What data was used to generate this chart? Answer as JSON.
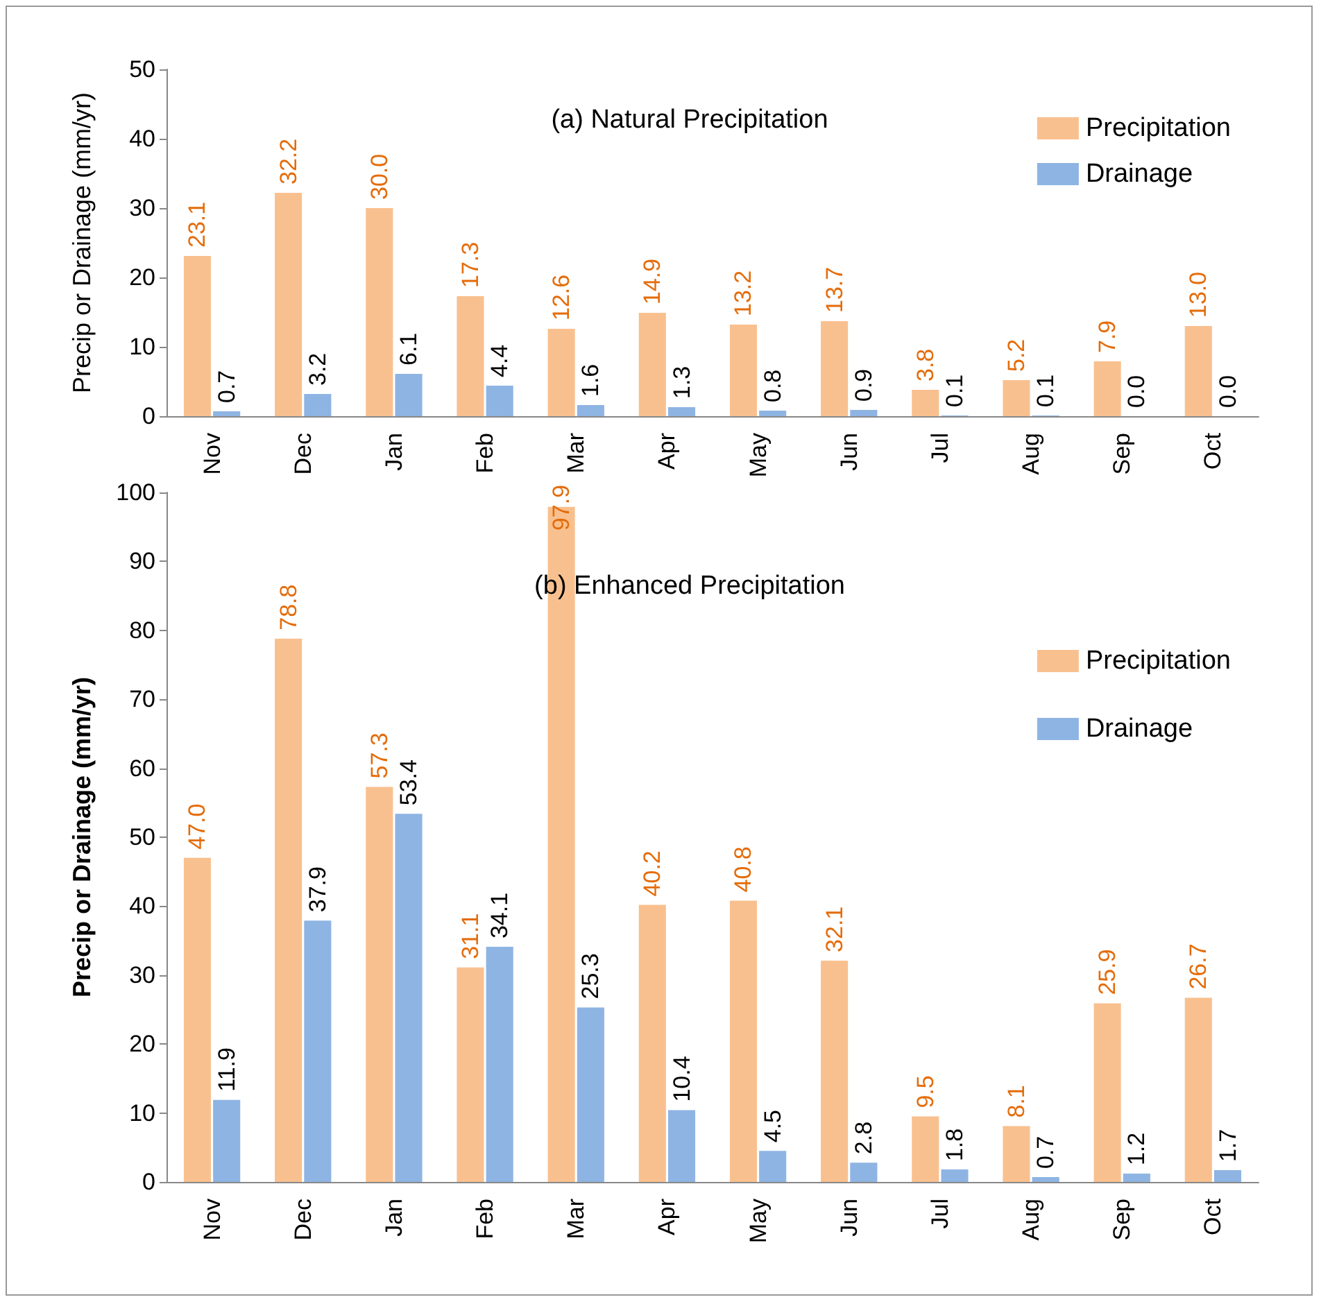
{
  "chart_data": [
    {
      "type": "bar",
      "title": "(a) Natural Precipitation",
      "ylabel": "Precip or Drainage (mm/yr)",
      "categories": [
        "Nov",
        "Dec",
        "Jan",
        "Feb",
        "Mar",
        "Apr",
        "May",
        "Jun",
        "Jul",
        "Aug",
        "Sep",
        "Oct"
      ],
      "series": [
        {
          "name": "Precipitation",
          "color": "#f9c08f",
          "values": [
            23.1,
            32.2,
            30,
            17.3,
            12.6,
            14.9,
            13.2,
            13.7,
            3.8,
            5.2,
            7.9,
            13
          ],
          "value_labels": [
            "23.1",
            "32.2",
            "30.0",
            "17.3",
            "12.6",
            "14.9",
            "13.2",
            "13.7",
            "3.8",
            "5.2",
            "7.9",
            "13.0"
          ]
        },
        {
          "name": "Drainage",
          "color": "#8eb4e3",
          "values": [
            0.7,
            3.2,
            6.1,
            4.4,
            1.6,
            1.3,
            0.8,
            0.9,
            0.1,
            0.1,
            0,
            0
          ],
          "value_labels": [
            "0.7",
            "3.2",
            "6.1",
            "4.4",
            "1.6",
            "1.3",
            "0.8",
            "0.9",
            "0.1",
            "0.1",
            "0.0",
            "0.0"
          ]
        }
      ],
      "ylim": [
        0,
        50
      ],
      "yticks": [
        0,
        10,
        20,
        30,
        40,
        50
      ],
      "grid": false,
      "legend": "top right"
    },
    {
      "type": "bar",
      "title": "(b) Enhanced Precipitation",
      "ylabel": "Precip or Drainage (mm/yr)",
      "categories": [
        "Nov",
        "Dec",
        "Jan",
        "Feb",
        "Mar",
        "Apr",
        "May",
        "Jun",
        "Jul",
        "Aug",
        "Sep",
        "Oct"
      ],
      "series": [
        {
          "name": "Precipitation",
          "color": "#f9c08f",
          "values": [
            47,
            78.8,
            57.3,
            31.1,
            97.9,
            40.2,
            40.8,
            32.1,
            9.5,
            8.1,
            25.9,
            26.7
          ],
          "value_labels": [
            "47.0",
            "78.8",
            "57.3",
            "31.1",
            "97.9",
            "40.2",
            "40.8",
            "32.1",
            "9.5",
            "8.1",
            "25.9",
            "26.7"
          ]
        },
        {
          "name": "Drainage",
          "color": "#8eb4e3",
          "values": [
            11.9,
            37.9,
            53.4,
            34.1,
            25.3,
            10.4,
            4.5,
            2.8,
            1.8,
            0.7,
            1.2,
            1.7
          ],
          "value_labels": [
            "11.9",
            "37.9",
            "53.4",
            "34.1",
            "25.3",
            "10.4",
            "4.5",
            "2.8",
            "1.8",
            "0.7",
            "1.2",
            "1.7"
          ]
        }
      ],
      "ylim": [
        0,
        100
      ],
      "yticks": [
        0,
        10,
        20,
        30,
        40,
        50,
        60,
        70,
        80,
        90,
        100
      ],
      "grid": false,
      "legend": "top right"
    }
  ]
}
